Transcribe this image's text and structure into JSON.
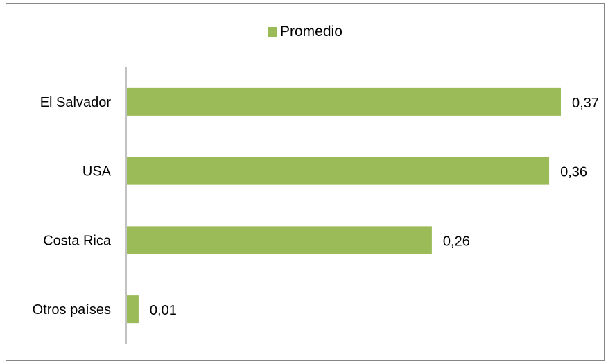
{
  "chart_data": {
    "type": "bar",
    "orientation": "horizontal",
    "categories": [
      "El Salvador",
      "USA",
      "Costa Rica",
      "Otros países"
    ],
    "series": [
      {
        "name": "Promedio",
        "values": [
          0.37,
          0.36,
          0.26,
          0.01
        ],
        "labels": [
          "0,37",
          "0,36",
          "0,26",
          "0,01"
        ],
        "color": "#9BBB59"
      }
    ],
    "title": "",
    "xlabel": "",
    "ylabel": "",
    "xlim": [
      0,
      0.37
    ],
    "grid": false,
    "legend_position": "top"
  }
}
